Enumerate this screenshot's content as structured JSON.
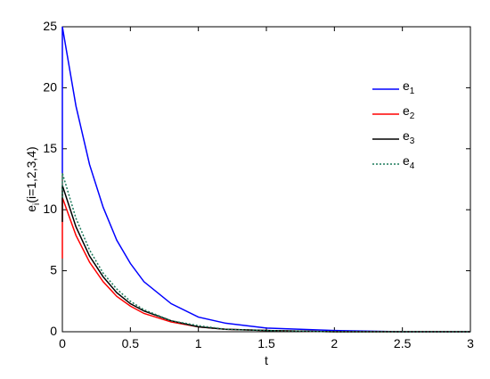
{
  "chart_data": {
    "type": "line",
    "xlabel": "t",
    "ylabel": "e_i(i=1,2,3,4)",
    "x": [
      0,
      0,
      0.1,
      0.2,
      0.3,
      0.4,
      0.5,
      0.6,
      0.8,
      1.0,
      1.2,
      1.5,
      2,
      2.5,
      3
    ],
    "series": [
      {
        "name": "e_1",
        "color": "#0000ff",
        "dash": false,
        "values": [
          13,
          25,
          18.5,
          13.7,
          10.2,
          7.5,
          5.6,
          4.1,
          2.3,
          1.2,
          0.7,
          0.3,
          0.1,
          0,
          0
        ]
      },
      {
        "name": "e_2",
        "color": "#ff0000",
        "dash": false,
        "values": [
          6,
          11,
          7.9,
          5.7,
          4.1,
          2.9,
          2.1,
          1.5,
          0.8,
          0.4,
          0.2,
          0.1,
          0,
          0,
          0
        ]
      },
      {
        "name": "e_3",
        "color": "#000000",
        "dash": false,
        "values": [
          9,
          12,
          8.6,
          6.2,
          4.5,
          3.2,
          2.3,
          1.7,
          0.9,
          0.4,
          0.2,
          0.1,
          0,
          0,
          0
        ]
      },
      {
        "name": "e_4",
        "color": "#1a7a5a",
        "dash": true,
        "values": [
          11,
          13,
          9.3,
          6.7,
          4.8,
          3.5,
          2.5,
          1.8,
          0.9,
          0.5,
          0.2,
          0.1,
          0,
          0,
          0
        ]
      }
    ],
    "xlim": [
      0,
      3
    ],
    "xticks": [
      0,
      0.5,
      1,
      1.5,
      2,
      2.5,
      3
    ],
    "ylim": [
      0,
      25
    ],
    "yticks": [
      0,
      5,
      10,
      15,
      20,
      25
    ],
    "grid": false,
    "legend": "northeast"
  }
}
